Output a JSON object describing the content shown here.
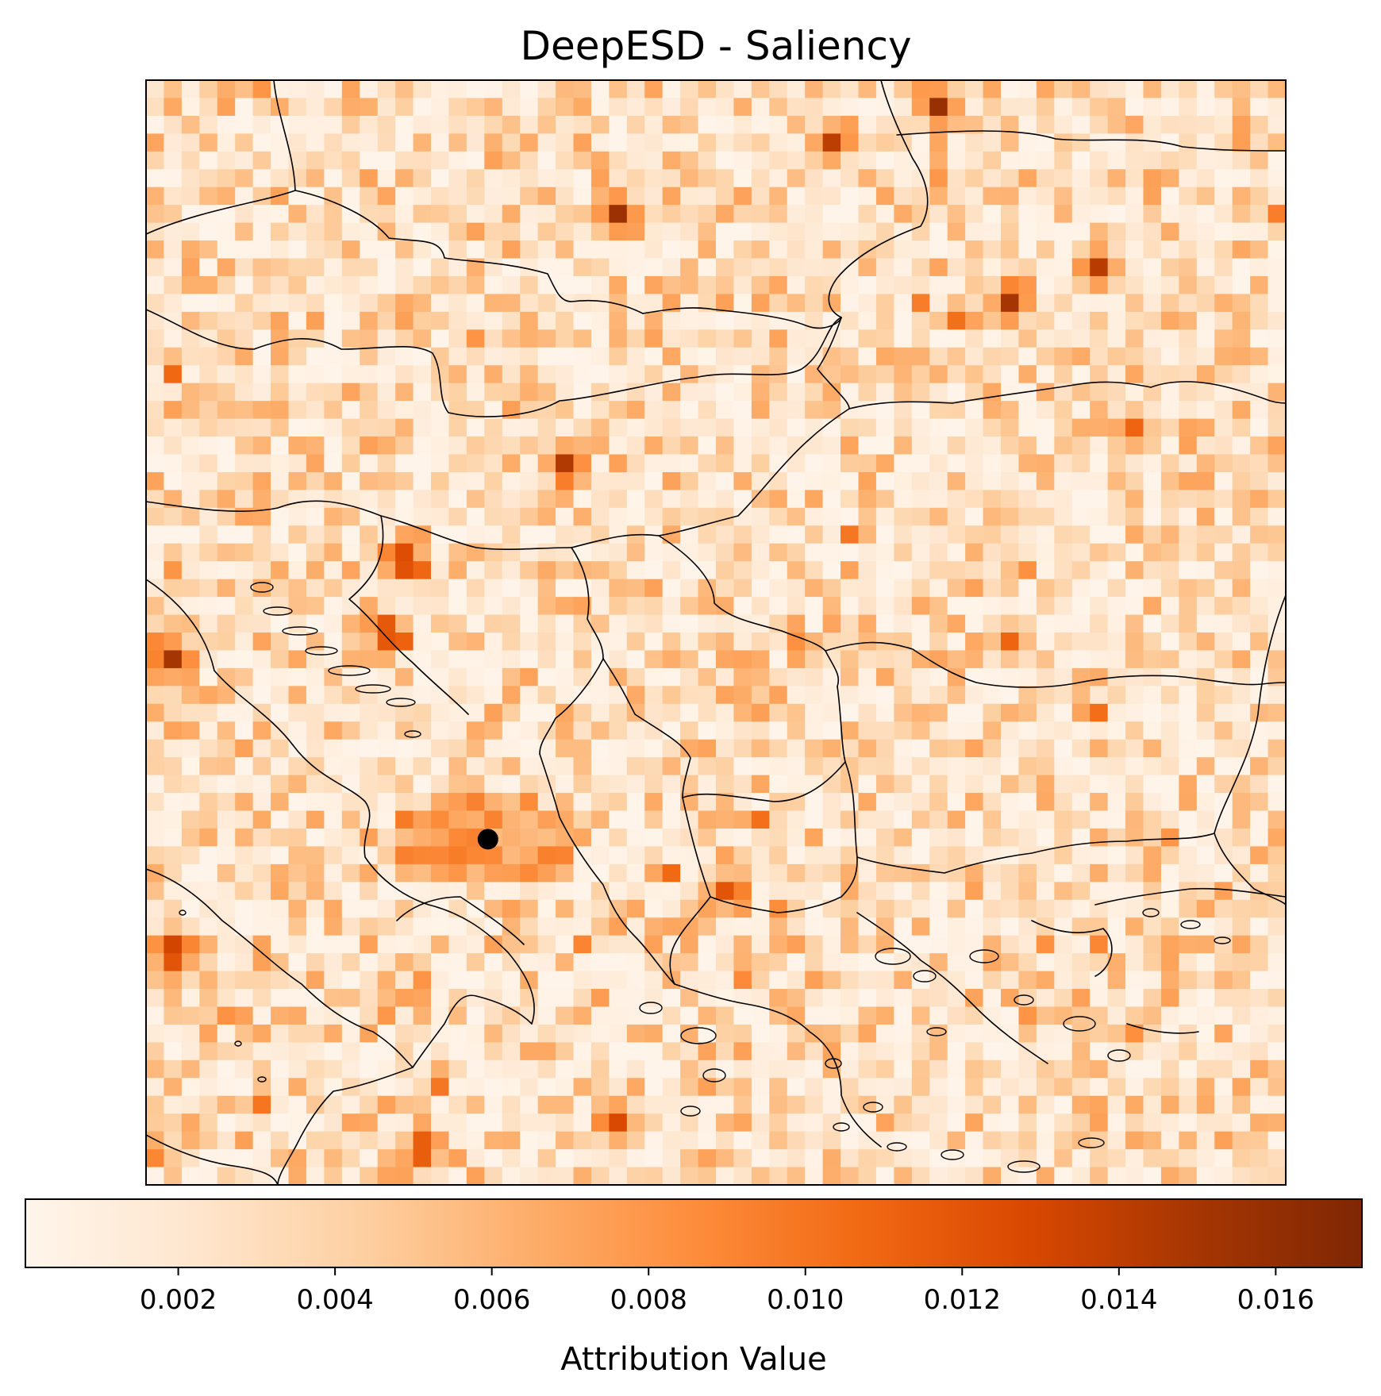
{
  "chart_data": {
    "type": "heatmap",
    "title": "DeepESD - Saliency",
    "colormap": "Oranges",
    "colormap_stops": [
      "#fff5eb",
      "#fee6ce",
      "#fdd0a2",
      "#fdae6b",
      "#fd8d3c",
      "#f16913",
      "#d94801",
      "#a63603",
      "#7f2704"
    ],
    "grid": {
      "rows": 62,
      "cols": 64
    },
    "value_range": [
      5e-05,
      0.0171
    ],
    "colorbar": {
      "label": "Attribution Value",
      "orientation": "horizontal",
      "ticks": [
        0.002,
        0.004,
        0.006,
        0.008,
        0.01,
        0.012,
        0.014,
        0.016
      ],
      "tick_labels": [
        "0.002",
        "0.004",
        "0.006",
        "0.008",
        "0.010",
        "0.012",
        "0.014",
        "0.016"
      ]
    },
    "marker": {
      "label": "",
      "color": "#000000",
      "col": 19.2,
      "row": 42.6
    },
    "hotspots": [
      {
        "col": 44.5,
        "row": 1.5,
        "value": 0.0158
      },
      {
        "col": 26.5,
        "row": 7.5,
        "value": 0.0155
      },
      {
        "col": 38.5,
        "row": 3.5,
        "value": 0.014
      },
      {
        "col": 48.5,
        "row": 12.5,
        "value": 0.015
      },
      {
        "col": 53.5,
        "row": 10.5,
        "value": 0.0142
      },
      {
        "col": 23.5,
        "row": 21.5,
        "value": 0.0145
      },
      {
        "col": 14.5,
        "row": 27.0,
        "value": 0.0148
      },
      {
        "col": 1.5,
        "row": 32.5,
        "value": 0.015
      },
      {
        "col": 13.5,
        "row": 31.0,
        "value": 0.0143
      },
      {
        "col": 1.5,
        "row": 49.0,
        "value": 0.0148
      },
      {
        "col": 15.5,
        "row": 60.0,
        "value": 0.014
      },
      {
        "col": 26.5,
        "row": 58.5,
        "value": 0.0128
      },
      {
        "col": 32.5,
        "row": 45.5,
        "value": 0.012
      },
      {
        "col": 18.5,
        "row": 43.5,
        "value": 0.009
      },
      {
        "col": 48.5,
        "row": 31.5,
        "value": 0.011
      },
      {
        "col": 55.5,
        "row": 19.5,
        "value": 0.011
      }
    ]
  }
}
